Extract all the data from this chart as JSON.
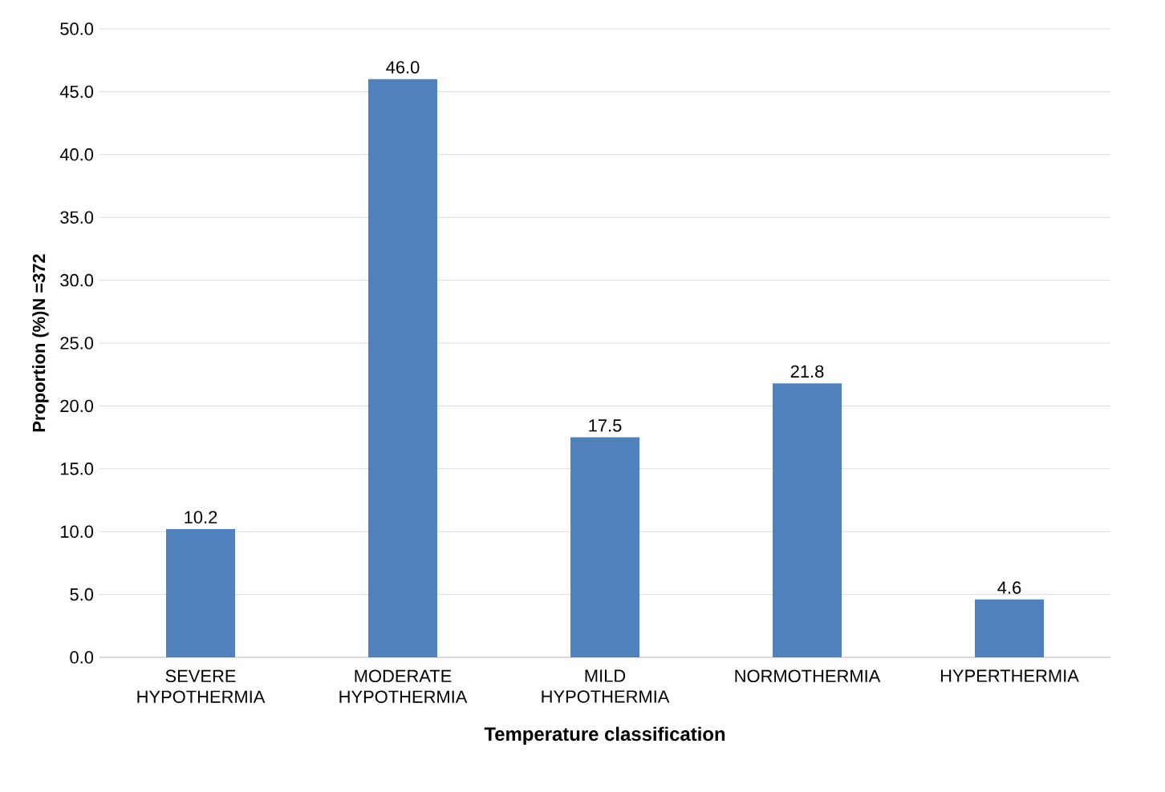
{
  "chart_data": {
    "type": "bar",
    "xlabel": "Temperature classification",
    "ylabel": "Proportion (%)N =372",
    "categories": [
      "SEVERE HYPOTHERMIA",
      "MODERATE HYPOTHERMIA",
      "MILD HYPOTHERMIA",
      "NORMOTHERMIA",
      "HYPERTHERMIA"
    ],
    "values": [
      10.2,
      46.0,
      17.5,
      21.8,
      4.6
    ],
    "value_labels": [
      "10.2",
      "46.0",
      "17.5",
      "21.8",
      "4.6"
    ],
    "color": "#4f81bd",
    "grid": "y",
    "ylim": [
      0,
      50
    ],
    "yticks": [
      {
        "value": 0,
        "label": "0.0"
      },
      {
        "value": 5,
        "label": "5.0"
      },
      {
        "value": 10,
        "label": "10.0"
      },
      {
        "value": 15,
        "label": "15.0"
      },
      {
        "value": 20,
        "label": "20.0"
      },
      {
        "value": 25,
        "label": "25.0"
      },
      {
        "value": 30,
        "label": "30.0"
      },
      {
        "value": 35,
        "label": "35.0"
      },
      {
        "value": 40,
        "label": "40.0"
      },
      {
        "value": 45,
        "label": "45.0"
      },
      {
        "value": 50,
        "label": "50.0"
      }
    ]
  }
}
